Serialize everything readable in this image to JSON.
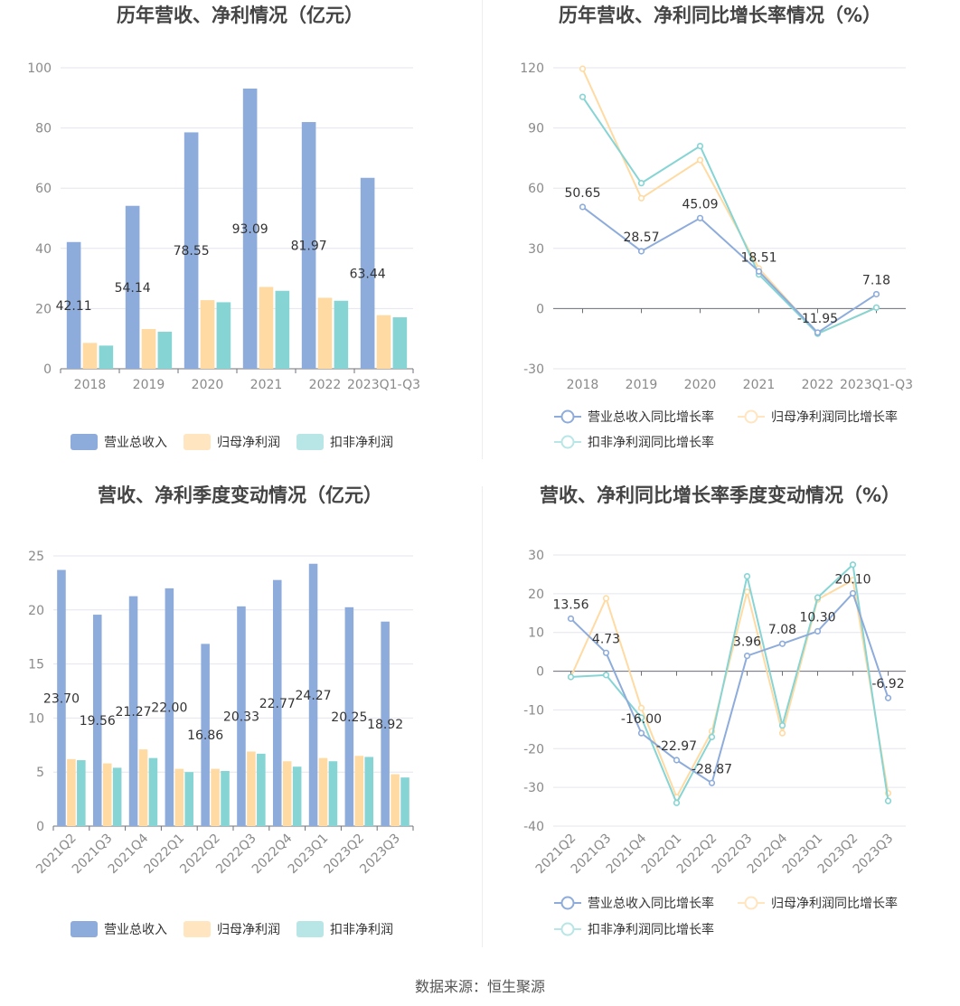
{
  "source_label": "数据来源：恒生聚源",
  "colors": {
    "revenue": "#8eacdb",
    "net_profit": "#ffdba3",
    "deducted_profit": "#86d4d4",
    "revenue_legend": "#8eacdb",
    "net_profit_legend": "#ffe5c0",
    "deducted_profit_legend": "#b8e6e6"
  },
  "chart_data": [
    {
      "type": "bar",
      "title": "历年营收、净利情况（亿元）",
      "categories": [
        "2018",
        "2019",
        "2020",
        "2021",
        "2022",
        "2023Q1-Q3"
      ],
      "ylim": [
        0,
        100
      ],
      "yticks": [
        0,
        20,
        40,
        60,
        80,
        100
      ],
      "grid": true,
      "legend": "bottom",
      "series": [
        {
          "name": "营业总收入",
          "values": [
            42.11,
            54.14,
            78.55,
            93.09,
            81.97,
            63.44
          ],
          "labels": [
            "42.11",
            "54.14",
            "78.55",
            "93.09",
            "81.97",
            "63.44"
          ]
        },
        {
          "name": "归母净利润",
          "values": [
            8.6,
            13.2,
            22.8,
            27.2,
            23.6,
            17.8
          ]
        },
        {
          "name": "扣非净利润",
          "values": [
            7.7,
            12.3,
            22.1,
            25.9,
            22.6,
            17.1
          ]
        }
      ]
    },
    {
      "type": "line",
      "title": "历年营收、净利同比增长率情况（%）",
      "categories": [
        "2018",
        "2019",
        "2020",
        "2021",
        "2022",
        "2023Q1-Q3"
      ],
      "ylim": [
        -30,
        120
      ],
      "yticks": [
        -30,
        0,
        30,
        60,
        90,
        120
      ],
      "grid": true,
      "legend": "bottom",
      "series": [
        {
          "name": "营业总收入同比增长率",
          "values": [
            50.65,
            28.57,
            45.09,
            18.51,
            -11.95,
            7.18
          ],
          "labels": [
            "50.65",
            "28.57",
            "45.09",
            "18.51",
            "-11.95",
            "7.18"
          ]
        },
        {
          "name": "归母净利润同比增长率",
          "values": [
            119.5,
            55.0,
            74.0,
            20.0,
            -12.5,
            0.5
          ]
        },
        {
          "name": "扣非净利润同比增长率",
          "values": [
            105.5,
            62.5,
            81.0,
            17.0,
            -12.5,
            0.5
          ]
        }
      ]
    },
    {
      "type": "bar",
      "title": "营收、净利季度变动情况（亿元）",
      "categories": [
        "2021Q2",
        "2021Q3",
        "2021Q4",
        "2022Q1",
        "2022Q2",
        "2022Q3",
        "2022Q4",
        "2023Q1",
        "2023Q2",
        "2023Q3"
      ],
      "ylim": [
        0,
        25
      ],
      "yticks": [
        0,
        5,
        10,
        15,
        20,
        25
      ],
      "grid": true,
      "legend": "bottom",
      "series": [
        {
          "name": "营业总收入",
          "values": [
            23.7,
            19.56,
            21.27,
            22.0,
            16.86,
            20.33,
            22.77,
            24.27,
            20.25,
            18.92
          ],
          "labels": [
            "23.70",
            "19.56",
            "21.27",
            "22.00",
            "16.86",
            "20.33",
            "22.77",
            "24.27",
            "20.25",
            "18.92"
          ]
        },
        {
          "name": "归母净利润",
          "values": [
            6.2,
            5.8,
            7.1,
            5.3,
            5.3,
            6.9,
            6.0,
            6.3,
            6.5,
            4.8
          ]
        },
        {
          "name": "扣非净利润",
          "values": [
            6.1,
            5.4,
            6.3,
            5.0,
            5.1,
            6.7,
            5.5,
            6.0,
            6.4,
            4.5
          ]
        }
      ]
    },
    {
      "type": "line",
      "title": "营收、净利同比增长率季度变动情况（%）",
      "categories": [
        "2021Q2",
        "2021Q3",
        "2021Q4",
        "2022Q1",
        "2022Q2",
        "2022Q3",
        "2022Q4",
        "2023Q1",
        "2023Q2",
        "2023Q3"
      ],
      "ylim": [
        -40,
        30
      ],
      "yticks": [
        -40,
        -30,
        -20,
        -10,
        0,
        10,
        20,
        30
      ],
      "grid": true,
      "legend": "bottom",
      "series": [
        {
          "name": "营业总收入同比增长率",
          "values": [
            13.56,
            4.73,
            -16.0,
            -22.97,
            -28.87,
            3.96,
            7.08,
            10.3,
            20.1,
            -6.92
          ],
          "labels": [
            "13.56",
            "4.73",
            "-16.00",
            "-22.97",
            "-28.87",
            "3.96",
            "7.08",
            "10.30",
            "20.10",
            "-6.92"
          ]
        },
        {
          "name": "归母净利润同比增长率",
          "values": [
            -1.5,
            18.8,
            -9.5,
            -32.5,
            -15.5,
            20.5,
            -16.0,
            18.5,
            23.5,
            -31.5
          ]
        },
        {
          "name": "扣非净利润同比增长率",
          "values": [
            -1.5,
            -1.0,
            -12.0,
            -34.0,
            -17.0,
            24.5,
            -14.0,
            19.0,
            27.5,
            -33.5
          ]
        }
      ]
    }
  ]
}
